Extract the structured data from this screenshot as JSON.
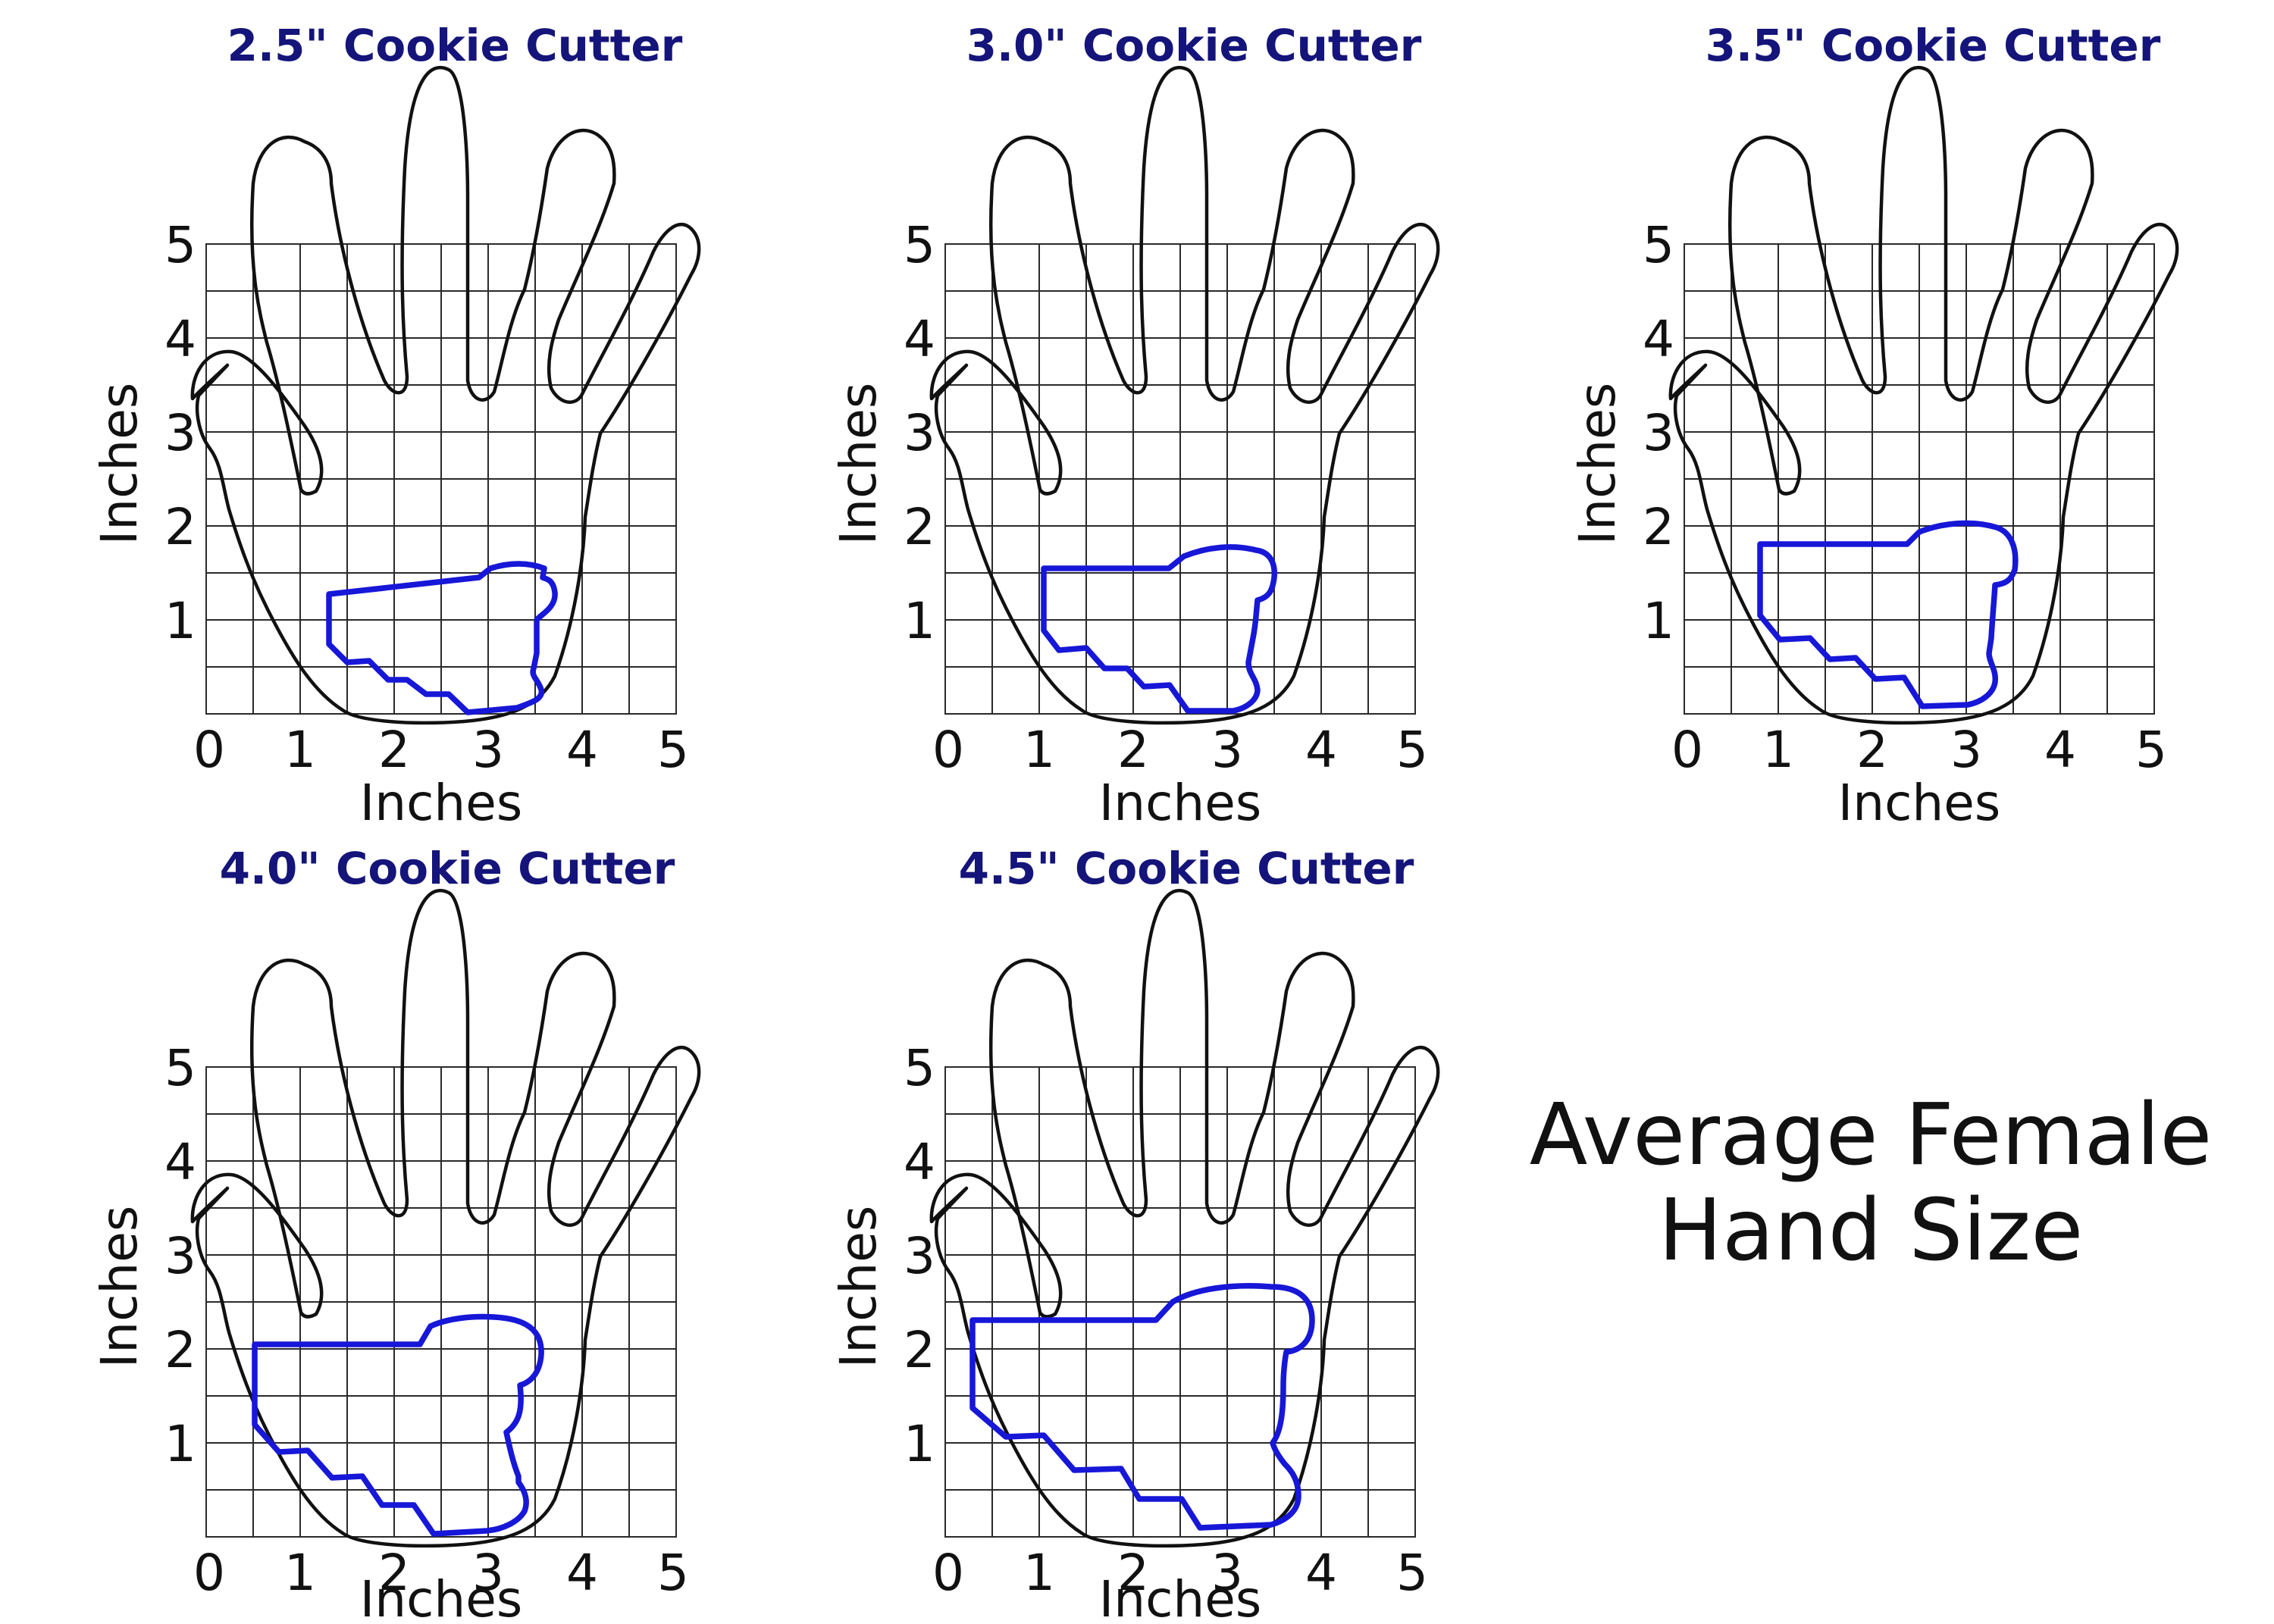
{
  "caption": {
    "line1": "Average Female",
    "line2": "Hand Size"
  },
  "colors": {
    "title": "#14147a",
    "cutter_outline": "#1717d8",
    "hand_outline": "#111111",
    "grid": "#2a2a2a"
  },
  "panels": [
    {
      "title": "2.5\" Cookie Cutter",
      "xlabel": "Inches",
      "ylabel": "Inches",
      "x_ticks": [
        "0",
        "1",
        "2",
        "3",
        "4",
        "5"
      ],
      "y_ticks": [
        "1",
        "2",
        "3",
        "4",
        "5"
      ]
    },
    {
      "title": "3.0\" Cookie Cutter",
      "xlabel": "Inches",
      "ylabel": "Inches",
      "x_ticks": [
        "0",
        "1",
        "2",
        "3",
        "4",
        "5"
      ],
      "y_ticks": [
        "1",
        "2",
        "3",
        "4",
        "5"
      ]
    },
    {
      "title": "3.5\" Cookie Cutter",
      "xlabel": "Inches",
      "ylabel": "Inches",
      "x_ticks": [
        "0",
        "1",
        "2",
        "3",
        "4",
        "5"
      ],
      "y_ticks": [
        "1",
        "2",
        "3",
        "4",
        "5"
      ]
    },
    {
      "title": "4.0\" Cookie Cutter",
      "xlabel": "Inches",
      "ylabel": "Inches",
      "x_ticks": [
        "0",
        "1",
        "2",
        "3",
        "4",
        "5"
      ],
      "y_ticks": [
        "1",
        "2",
        "3",
        "4",
        "5"
      ]
    },
    {
      "title": "4.5\" Cookie Cutter",
      "xlabel": "Inches",
      "ylabel": "Inches",
      "x_ticks": [
        "0",
        "1",
        "2",
        "3",
        "4",
        "5"
      ],
      "y_ticks": [
        "1",
        "2",
        "3",
        "4",
        "5"
      ]
    }
  ]
}
